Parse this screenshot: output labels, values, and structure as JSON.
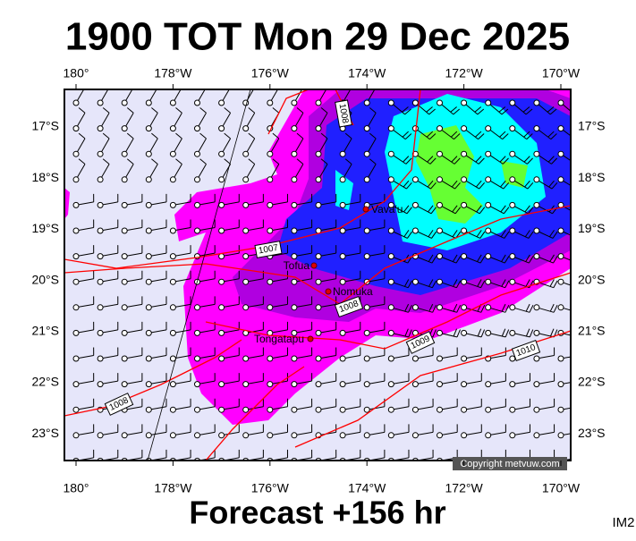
{
  "header": {
    "title": "1900 TOT Mon 29 Dec 2025"
  },
  "map": {
    "longitude_labels": [
      "180°",
      "178°W",
      "176°W",
      "174°W",
      "172°W",
      "170°W"
    ],
    "latitude_labels": [
      "17°S",
      "18°S",
      "19°S",
      "20°S",
      "21°S",
      "22°S",
      "23°S"
    ],
    "places": [
      "Vava'u",
      "Tofua",
      "Nomuka",
      "Tongatapu"
    ],
    "isobar_labels": [
      "1008",
      "1007",
      "1008",
      "1009",
      "1010",
      "1008"
    ],
    "copyright": "Copyright metvuw.com"
  },
  "footer": {
    "forecast": "Forecast +156 hr",
    "code": "IM2"
  }
}
